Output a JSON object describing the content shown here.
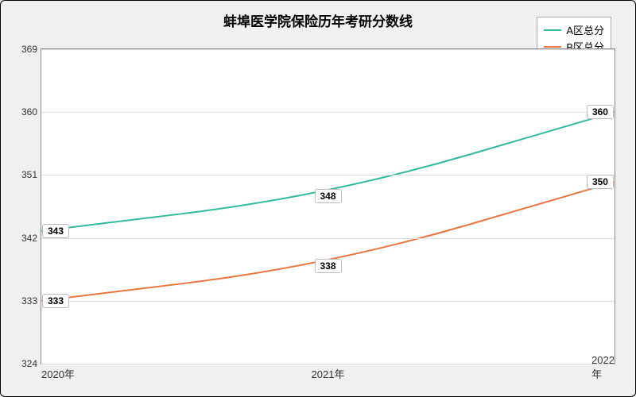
{
  "chart": {
    "type": "line",
    "title": "蚌埠医学院保险历年考研分数线",
    "title_fontsize": 17,
    "background_color": "#f0f0f0",
    "plot_background": "#ffffff",
    "grid_color": "#dddddd",
    "xlabels": [
      "2020年",
      "2021年",
      "2022年"
    ],
    "ylim": [
      324,
      369
    ],
    "yticks": [
      324,
      333,
      342,
      351,
      360,
      369
    ],
    "series": [
      {
        "name": "A区总分",
        "color": "#2fb99b",
        "values": [
          343,
          348,
          360
        ],
        "line_width": 2
      },
      {
        "name": "B区总分",
        "color": "#e8743f",
        "values": [
          333,
          338,
          350
        ],
        "line_width": 2
      }
    ],
    "label_fontsize": 12,
    "axis_fontsize": 12
  }
}
